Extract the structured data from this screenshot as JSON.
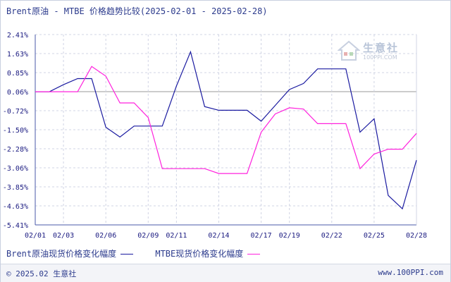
{
  "header": {
    "title": "Brent原油 - MTBE 价格趋势比较(2025-02-01 - 2025-02-28)"
  },
  "legend": {
    "items": [
      {
        "label": "Brent原油现货价格变化幅度",
        "color": "#1a1aa0"
      },
      {
        "label": "MTBE现货价格变化幅度",
        "color": "#ff22dd"
      }
    ]
  },
  "watermark": {
    "name": "生意社",
    "url": "100PPI.COM"
  },
  "footer": {
    "copyright": "© 2025.02 生意社",
    "url": "www.100PPI.com"
  },
  "colors": {
    "axis": "#4a5aa8",
    "grid": "#d0d4e4",
    "zero_line": "#999999",
    "brent": "#1a1aa0",
    "mtbe": "#ff22dd"
  },
  "chart_data": {
    "type": "line",
    "title": "Brent原油 - MTBE 价格趋势比较(2025-02-01 - 2025-02-28)",
    "xlabel": "",
    "ylabel": "",
    "x": [
      "02/01",
      "02/02",
      "02/03",
      "02/04",
      "02/05",
      "02/06",
      "02/07",
      "02/08",
      "02/09",
      "02/10",
      "02/11",
      "02/12",
      "02/13",
      "02/14",
      "02/15",
      "02/16",
      "02/17",
      "02/18",
      "02/19",
      "02/20",
      "02/21",
      "02/22",
      "02/23",
      "02/24",
      "02/25",
      "02/26",
      "02/27",
      "02/28"
    ],
    "x_ticks": [
      "02/01",
      "02/03",
      "02/06",
      "02/09",
      "02/11",
      "02/14",
      "02/17",
      "02/19",
      "02/22",
      "02/25",
      "02/28"
    ],
    "y_ticks": [
      "2.41%",
      "1.63%",
      "0.85%",
      "0.06%",
      "-0.72%",
      "-1.50%",
      "-2.28%",
      "-3.06%",
      "-3.85%",
      "-4.63%",
      "-5.41%"
    ],
    "ylim": [
      -5.41,
      2.41
    ],
    "grid": true,
    "legend_position": "bottom",
    "series": [
      {
        "name": "Brent原油现货价格变化幅度",
        "values": [
          0.06,
          0.06,
          0.35,
          0.6,
          0.6,
          -1.4,
          -1.8,
          -1.35,
          -1.35,
          -1.35,
          0.3,
          1.7,
          -0.55,
          -0.7,
          -0.7,
          -0.7,
          -1.15,
          -0.5,
          0.15,
          0.4,
          1.0,
          1.0,
          1.0,
          -1.6,
          -1.05,
          -4.2,
          -4.75,
          -2.75
        ]
      },
      {
        "name": "MTBE现货价格变化幅度",
        "values": [
          0.06,
          0.06,
          0.06,
          0.06,
          1.1,
          0.7,
          -0.4,
          -0.4,
          -1.0,
          -3.1,
          -3.1,
          -3.1,
          -3.1,
          -3.3,
          -3.3,
          -3.3,
          -1.6,
          -0.85,
          -0.6,
          -0.65,
          -1.25,
          -1.25,
          -1.25,
          -3.1,
          -2.5,
          -2.3,
          -2.3,
          -1.65
        ]
      }
    ]
  }
}
